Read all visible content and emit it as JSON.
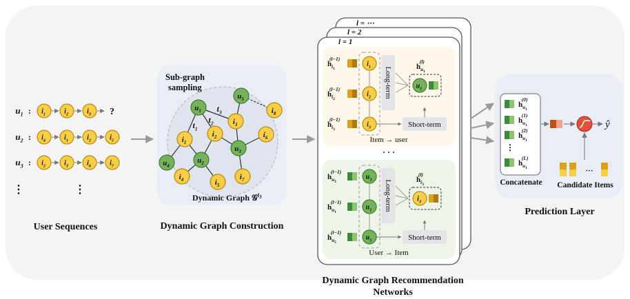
{
  "user_sequences": {
    "title": "User Sequences",
    "rows": [
      {
        "user": "u",
        "user_sub": "1",
        "items": [
          {
            "i": "i",
            "s": "1"
          },
          {
            "i": "i",
            "s": "2"
          },
          {
            "i": "i",
            "s": "3"
          }
        ],
        "tail": "?"
      },
      {
        "user": "u",
        "user_sub": "2",
        "items": [
          {
            "i": "i",
            "s": "4"
          },
          {
            "i": "i",
            "s": "1"
          },
          {
            "i": "i",
            "s": "2"
          },
          {
            "i": "i",
            "s": "5"
          }
        ],
        "tail": ""
      },
      {
        "user": "u",
        "user_sub": "3",
        "items": [
          {
            "i": "i",
            "s": "2"
          },
          {
            "i": "i",
            "s": "3"
          },
          {
            "i": "i",
            "s": "6"
          },
          {
            "i": "i",
            "s": "7"
          }
        ],
        "tail": ""
      }
    ],
    "vdots": "⋮"
  },
  "graph_construction": {
    "title": "Dynamic Graph Construction",
    "sampling_line1": "Sub-graph",
    "sampling_line2": "sampling",
    "graph_label": "Dynamic Graph 𝒢",
    "graph_label_sup": "t",
    "graph_label_sup_sub": "3",
    "nodes": [
      {
        "id": "u1",
        "k": "user",
        "l": "u",
        "s": "1"
      },
      {
        "id": "u5",
        "k": "user",
        "l": "u",
        "s": "5"
      },
      {
        "id": "i8",
        "k": "item",
        "l": "i",
        "s": "8"
      },
      {
        "id": "i3",
        "k": "item",
        "l": "i",
        "s": "3"
      },
      {
        "id": "i1",
        "k": "item",
        "l": "i",
        "s": "1"
      },
      {
        "id": "i2",
        "k": "item",
        "l": "i",
        "s": "2"
      },
      {
        "id": "i6",
        "k": "item",
        "l": "i",
        "s": "6"
      },
      {
        "id": "u3",
        "k": "user",
        "l": "u",
        "s": "3"
      },
      {
        "id": "u2",
        "k": "user",
        "l": "u",
        "s": "2"
      },
      {
        "id": "u4",
        "k": "user",
        "l": "u",
        "s": "4"
      },
      {
        "id": "i4",
        "k": "item",
        "l": "i",
        "s": "4"
      },
      {
        "id": "i5",
        "k": "item",
        "l": "i",
        "s": "5"
      },
      {
        "id": "i7",
        "k": "item",
        "l": "i",
        "s": "7"
      }
    ],
    "edge_labels": [
      {
        "l": "t",
        "s": "3"
      },
      {
        "l": "t",
        "s": "2"
      },
      {
        "l": "t",
        "s": "1"
      }
    ]
  },
  "recommendation_networks": {
    "title_line1": "Dynamic Graph Recommendation",
    "title_line2": "Networks",
    "layer_labels": [
      "l = ⋯",
      "l = 2",
      "l = 1"
    ],
    "item_to_user_caption": "Item → user",
    "user_to_item_caption": "User → Item",
    "ellipsis": "· · ·",
    "long_term": "Long-term",
    "short_term": "Short-term",
    "top_inputs": [
      {
        "h": "h",
        "s": "i",
        "ss": "1",
        "sup": "(l−1)",
        "node_l": "i",
        "node_s": "1"
      },
      {
        "h": "h",
        "s": "i",
        "ss": "2",
        "sup": "(l−1)",
        "node_l": "i",
        "node_s": "2"
      },
      {
        "h": "h",
        "s": "i",
        "ss": "3",
        "sup": "(l−1)",
        "node_l": "i",
        "node_s": "3"
      }
    ],
    "top_output": {
      "h": "h",
      "s": "u",
      "ss": "1",
      "sup": "(l)",
      "node_l": "u",
      "node_s": "1"
    },
    "bottom_inputs": [
      {
        "h": "h",
        "s": "u",
        "ss": "3",
        "sup": "(l−1)",
        "node_l": "u",
        "node_s": "3"
      },
      {
        "h": "h",
        "s": "u",
        "ss": "1",
        "sup": "(l−1)",
        "node_l": "u",
        "node_s": "1"
      },
      {
        "h": "h",
        "s": "u",
        "ss": "5",
        "sup": "(l−1)",
        "node_l": "u",
        "node_s": "5"
      }
    ],
    "bottom_output": {
      "h": "h",
      "s": "i",
      "ss": "3",
      "sup": "(l)",
      "node_l": "i",
      "node_s": "3"
    }
  },
  "prediction": {
    "title": "Prediction Layer",
    "concat_label": "Concatenate",
    "candidate_label": "Candidate Items",
    "output_symbol": "ŷ",
    "cand_ellipsis": "···",
    "vdots": "⋮",
    "stack": [
      {
        "h": "h",
        "s": "u",
        "ss": "1",
        "sup": "(0)"
      },
      {
        "h": "h",
        "s": "u",
        "ss": "1",
        "sup": "(1)"
      },
      {
        "h": "h",
        "s": "u",
        "ss": "1",
        "sup": "(2)"
      },
      {
        "h": "h",
        "s": "u",
        "ss": "1",
        "sup": "(L)"
      }
    ]
  },
  "colors": {
    "item_fill": "#f7ce45",
    "item_stroke": "#b48a10",
    "user_fill": "#74b359",
    "user_stroke": "#3f7a2e",
    "panel_blue": "#e9edf5",
    "top_panel": "#fdf8ea",
    "bottom_panel": "#eef4e8",
    "arrow": "#9a9a9a",
    "red": "#e0513a"
  }
}
